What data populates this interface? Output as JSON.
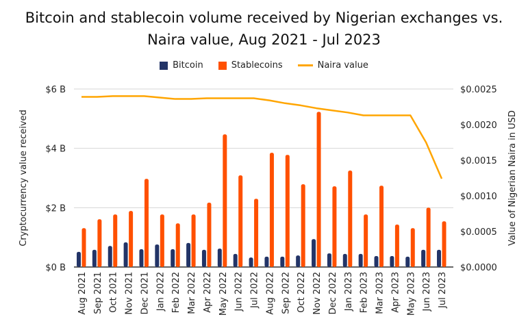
{
  "chart_data": {
    "type": "bar",
    "title_line1": "Bitcoin and stablecoin volume received by Nigerian exchanges vs.",
    "title_line2": "Naira value, Aug 2021 - Jul 2023",
    "ylabel": "Cryptocurrency value received",
    "y2label": "Value of Nigerian Naira in USD",
    "ylim": [
      0,
      6
    ],
    "y2lim": [
      0,
      0.0025
    ],
    "yticks": [
      "$0 B",
      "$2 B",
      "$4 B",
      "$6 B"
    ],
    "y2ticks": [
      "$0.0000",
      "$0.0005",
      "$0.0010",
      "$0.0015",
      "$0.0020",
      "$0.0025"
    ],
    "grid": true,
    "legend_position": "top",
    "categories": [
      "Aug 2021",
      "Sep 2021",
      "Oct 2021",
      "Nov 2021",
      "Dec 2021",
      "Jan 2022",
      "Feb 2022",
      "Mar 2022",
      "Apr 2022",
      "May 2022",
      "Jun 2022",
      "Jul 2022",
      "Aug 2022",
      "Sep 2022",
      "Oct 2022",
      "Nov 2022",
      "Dec 2022",
      "Jan 2023",
      "Feb 2023",
      "Mar 2023",
      "Apr 2023",
      "May 2023",
      "Jun 2023",
      "Jul 2023"
    ],
    "series": [
      {
        "name": "Bitcoin",
        "type": "bar",
        "axis": "left",
        "color": "#233467",
        "values": [
          0.51,
          0.58,
          0.71,
          0.83,
          0.6,
          0.76,
          0.6,
          0.81,
          0.58,
          0.62,
          0.44,
          0.32,
          0.35,
          0.35,
          0.39,
          0.94,
          0.46,
          0.44,
          0.44,
          0.37,
          0.37,
          0.35,
          0.58,
          0.58
        ]
      },
      {
        "name": "Stablecoins",
        "type": "bar",
        "axis": "left",
        "color": "#ff5000",
        "values": [
          1.31,
          1.61,
          1.77,
          1.89,
          2.97,
          1.77,
          1.47,
          1.77,
          2.17,
          4.47,
          3.09,
          2.3,
          3.85,
          3.78,
          2.79,
          5.23,
          2.72,
          3.25,
          1.77,
          2.74,
          1.43,
          1.31,
          2.0,
          1.54
        ]
      },
      {
        "name": "Naira value",
        "type": "line",
        "axis": "right",
        "color": "#ffa500",
        "values": [
          0.00239,
          0.00239,
          0.0024,
          0.0024,
          0.0024,
          0.00238,
          0.00236,
          0.00236,
          0.00237,
          0.00237,
          0.00237,
          0.00237,
          0.00234,
          0.0023,
          0.00227,
          0.00223,
          0.0022,
          0.00217,
          0.00213,
          0.00213,
          0.00213,
          0.00213,
          0.00175,
          0.00124
        ]
      }
    ]
  }
}
